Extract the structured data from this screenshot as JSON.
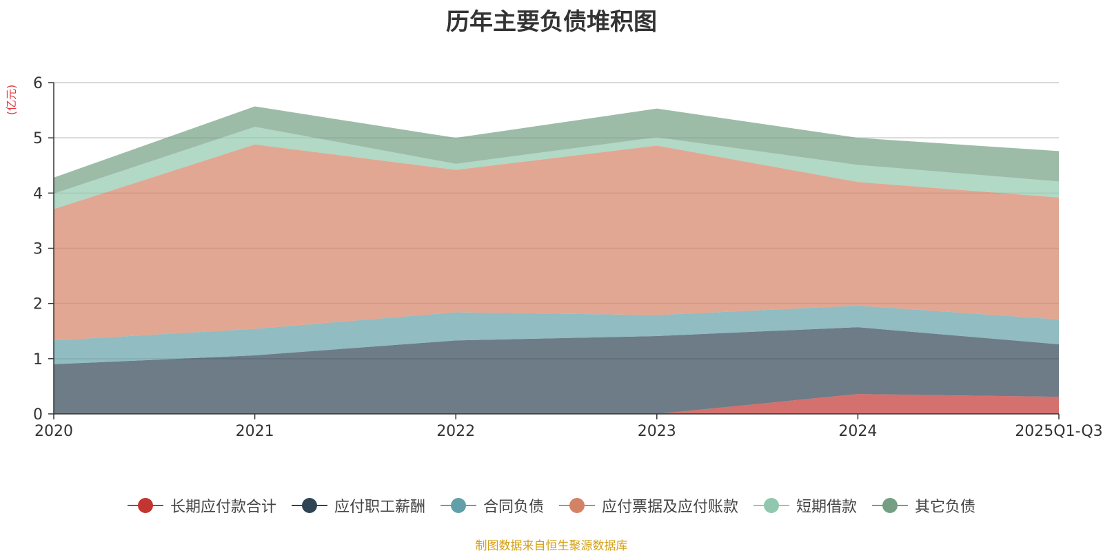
{
  "chart_data": {
    "type": "area",
    "stacked": true,
    "title": "历年主要负债堆积图",
    "ylabel": "(亿元)",
    "xlabel": "",
    "ylim": [
      0,
      6
    ],
    "yticks": [
      0,
      1,
      2,
      3,
      4,
      5,
      6
    ],
    "grid": true,
    "legend_position": "bottom",
    "categories": [
      "2020",
      "2021",
      "2022",
      "2023",
      "2024",
      "2025Q1-Q3"
    ],
    "series": [
      {
        "name": "长期应付款合计",
        "color": "#c23531",
        "values": [
          0,
          0,
          0,
          0,
          0.36,
          0.31
        ]
      },
      {
        "name": "应付职工薪酬",
        "color": "#2f4554",
        "values": [
          0.9,
          1.06,
          1.33,
          1.41,
          1.21,
          0.95
        ]
      },
      {
        "name": "合同负债",
        "color": "#61a0a8",
        "values": [
          0.43,
          0.48,
          0.51,
          0.38,
          0.39,
          0.45
        ]
      },
      {
        "name": "应付票据及应付账款",
        "color": "#d48265",
        "values": [
          2.38,
          3.34,
          2.58,
          3.07,
          2.24,
          2.21
        ]
      },
      {
        "name": "短期借款",
        "color": "#91c7ae",
        "values": [
          0.28,
          0.32,
          0.11,
          0.15,
          0.31,
          0.29
        ]
      },
      {
        "name": "其它负债",
        "color": "#749f83",
        "values": [
          0.29,
          0.37,
          0.47,
          0.52,
          0.49,
          0.55
        ]
      }
    ]
  },
  "source_note": "制图数据来自恒生聚源数据库"
}
